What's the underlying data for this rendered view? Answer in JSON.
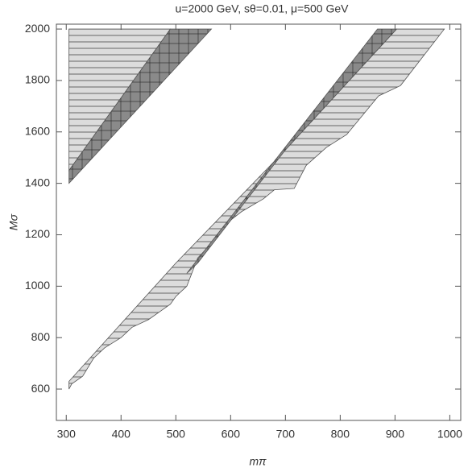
{
  "chart_data": {
    "type": "region",
    "title": "u=2000 GeV, sθ=0.01, μ=500 GeV",
    "x_label": "mπ",
    "y_label": "Mσ",
    "xlim": [
      282,
      1020
    ],
    "ylim": [
      478,
      2019
    ],
    "xticks": [
      300,
      400,
      500,
      600,
      700,
      800,
      900,
      1000
    ],
    "yticks": [
      600,
      800,
      1000,
      1200,
      1400,
      1600,
      1800,
      2000
    ],
    "regions": [
      {
        "color": "#dcdcdc",
        "hatch": "horizontal",
        "x": [
          305,
          305,
          490
        ],
        "y": [
          1450,
          2000,
          2000
        ]
      },
      {
        "color": "#8a8a8a",
        "hatch": "cross",
        "x": [
          305,
          305,
          490,
          565
        ],
        "y": [
          1400,
          1450,
          2000,
          2000
        ]
      },
      {
        "color": "#dcdcdc",
        "hatch": "horizontal",
        "x": [
          305,
          500,
          700,
          903,
          990,
          910,
          870,
          812,
          775,
          738,
          716,
          680,
          660,
          620,
          590,
          569,
          540,
          520,
          500,
          490,
          470,
          450,
          420,
          400,
          370,
          350,
          330,
          310,
          305
        ],
        "y": [
          630,
          1090,
          1530,
          2000,
          2000,
          1780,
          1740,
          1590,
          1540,
          1470,
          1380,
          1375,
          1340,
          1290,
          1240,
          1175,
          1110,
          1000,
          960,
          930,
          900,
          870,
          840,
          800,
          760,
          720,
          650,
          620,
          600
        ]
      },
      {
        "color": "#8a8a8a",
        "hatch": "cross",
        "x": [
          520,
          868,
          903,
          700,
          540
        ],
        "y": [
          1050,
          2000,
          2000,
          1530,
          1090
        ]
      }
    ]
  }
}
